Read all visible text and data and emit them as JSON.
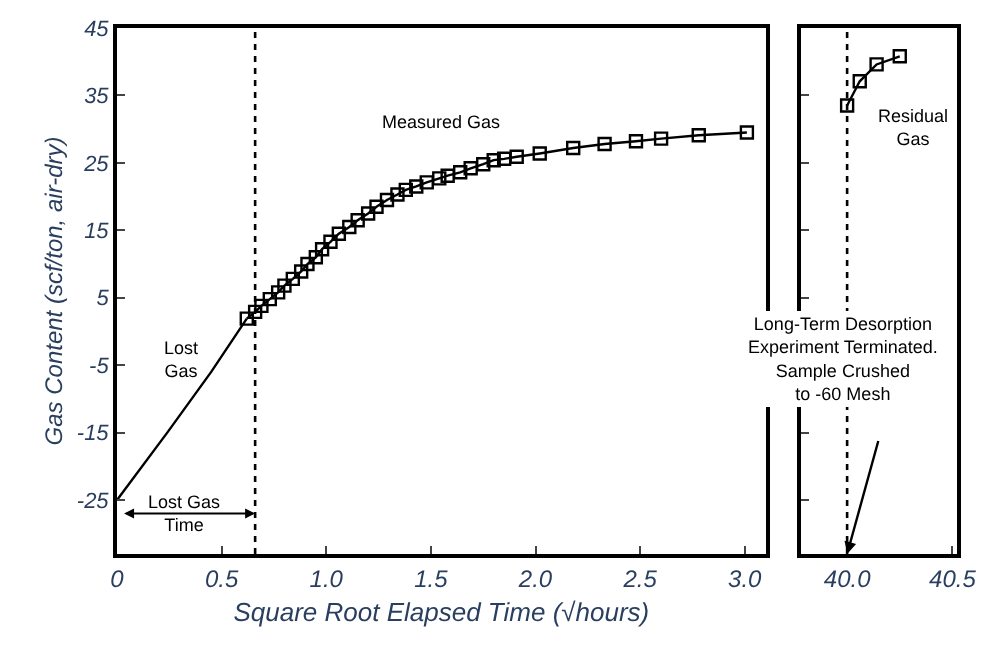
{
  "chart_data": [
    {
      "type": "line",
      "xlabel": "Square Root Elapsed Time (√hours)",
      "ylabel": "Gas Content (scf/ton, air-dry)",
      "xlim": [
        0,
        3.1
      ],
      "xticks": [
        0,
        {
          "value": 0.5,
          "label": "0.5"
        },
        {
          "value": 1.0,
          "label": "1.0"
        },
        1.5,
        {
          "value": 2.0,
          "label": "2.0"
        },
        2.5,
        {
          "value": 3.0,
          "label": "3.0"
        }
      ],
      "ylim": [
        -33,
        45
      ],
      "yticks": [
        -25,
        -15,
        -5,
        5,
        15,
        25,
        35,
        45
      ],
      "series": [
        {
          "color": "#000000",
          "marker": "square",
          "x": [
            0.62,
            0.66,
            0.69,
            0.73,
            0.77,
            0.8,
            0.84,
            0.88,
            0.91,
            0.95,
            0.98,
            1.02,
            1.06,
            1.11,
            1.15,
            1.2,
            1.24,
            1.29,
            1.34,
            1.38,
            1.43,
            1.48,
            1.54,
            1.58,
            1.64,
            1.69,
            1.75,
            1.8,
            1.85,
            1.91,
            2.02,
            2.18,
            2.33,
            2.48,
            2.6,
            2.78,
            3.01
          ],
          "values": [
            1.9,
            2.9,
            3.8,
            4.8,
            5.8,
            6.8,
            7.8,
            8.9,
            10.0,
            11.0,
            12.2,
            13.3,
            14.5,
            15.5,
            16.5,
            17.5,
            18.5,
            19.5,
            20.3,
            21.0,
            21.5,
            22.1,
            22.7,
            23.1,
            23.6,
            24.2,
            24.8,
            25.4,
            25.6,
            25.9,
            26.4,
            27.2,
            27.8,
            28.2,
            28.6,
            29.1,
            29.5
          ]
        },
        {
          "color": "#000000",
          "marker": "none",
          "x": [
            0,
            0.24,
            0.45,
            0.62
          ],
          "values": [
            -25,
            -15,
            -6,
            1.9
          ]
        }
      ],
      "ref_lines": [
        {
          "axis": "x",
          "value": 0.66,
          "line_style": "dotted"
        }
      ],
      "annotations": [
        "Measured Gas",
        "Lost\nGas",
        "Lost Gas\nTime"
      ]
    },
    {
      "type": "line",
      "tick_labels": "x",
      "xlim": [
        39.78,
        40.52
      ],
      "xticks": [
        {
          "value": 40.0,
          "label": "40.0"
        },
        40.5
      ],
      "ylim": [
        -33,
        45
      ],
      "yticks": [
        -25,
        -15,
        -5,
        5,
        15,
        25,
        35,
        45
      ],
      "series": [
        {
          "color": "#000000",
          "marker": "square",
          "x": [
            40.0,
            40.06,
            40.14,
            40.25
          ],
          "values": [
            33.5,
            37.1,
            39.6,
            40.8
          ]
        }
      ],
      "ref_lines": [
        {
          "axis": "x",
          "value": 40.0,
          "line_style": "dotted"
        }
      ],
      "annotations": [
        "Long-Term Desorption\nExperiment Terminated.\nSample Crushed\nto -60 Mesh",
        "Residual\nGas"
      ]
    }
  ]
}
